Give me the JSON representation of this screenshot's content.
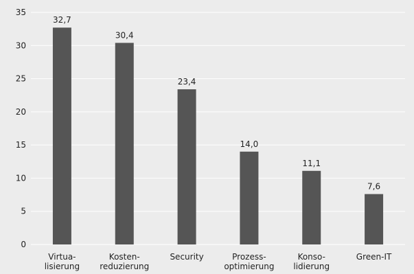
{
  "chart_data": {
    "type": "bar",
    "title": "",
    "xlabel": "",
    "ylabel": "",
    "categories": [
      [
        "Virtua-",
        "lisierung"
      ],
      [
        "Kosten-",
        "reduzierung"
      ],
      [
        "Security"
      ],
      [
        "Prozess-",
        "optimierung"
      ],
      [
        "Konso-",
        "lidierung"
      ],
      [
        "Green-IT"
      ]
    ],
    "values": [
      32.7,
      30.4,
      23.4,
      14.0,
      11.1,
      7.6
    ],
    "value_labels": [
      "32,7",
      "30,4",
      "23,4",
      "14,0",
      "11,1",
      "7,6"
    ],
    "ylim": [
      0,
      35
    ],
    "yticks": [
      0,
      5,
      10,
      15,
      20,
      25,
      30,
      35
    ],
    "grid": true,
    "colors": {
      "background": "#ececec",
      "bar": "#555555",
      "grid": "#ffffff",
      "text": "#222222"
    }
  }
}
